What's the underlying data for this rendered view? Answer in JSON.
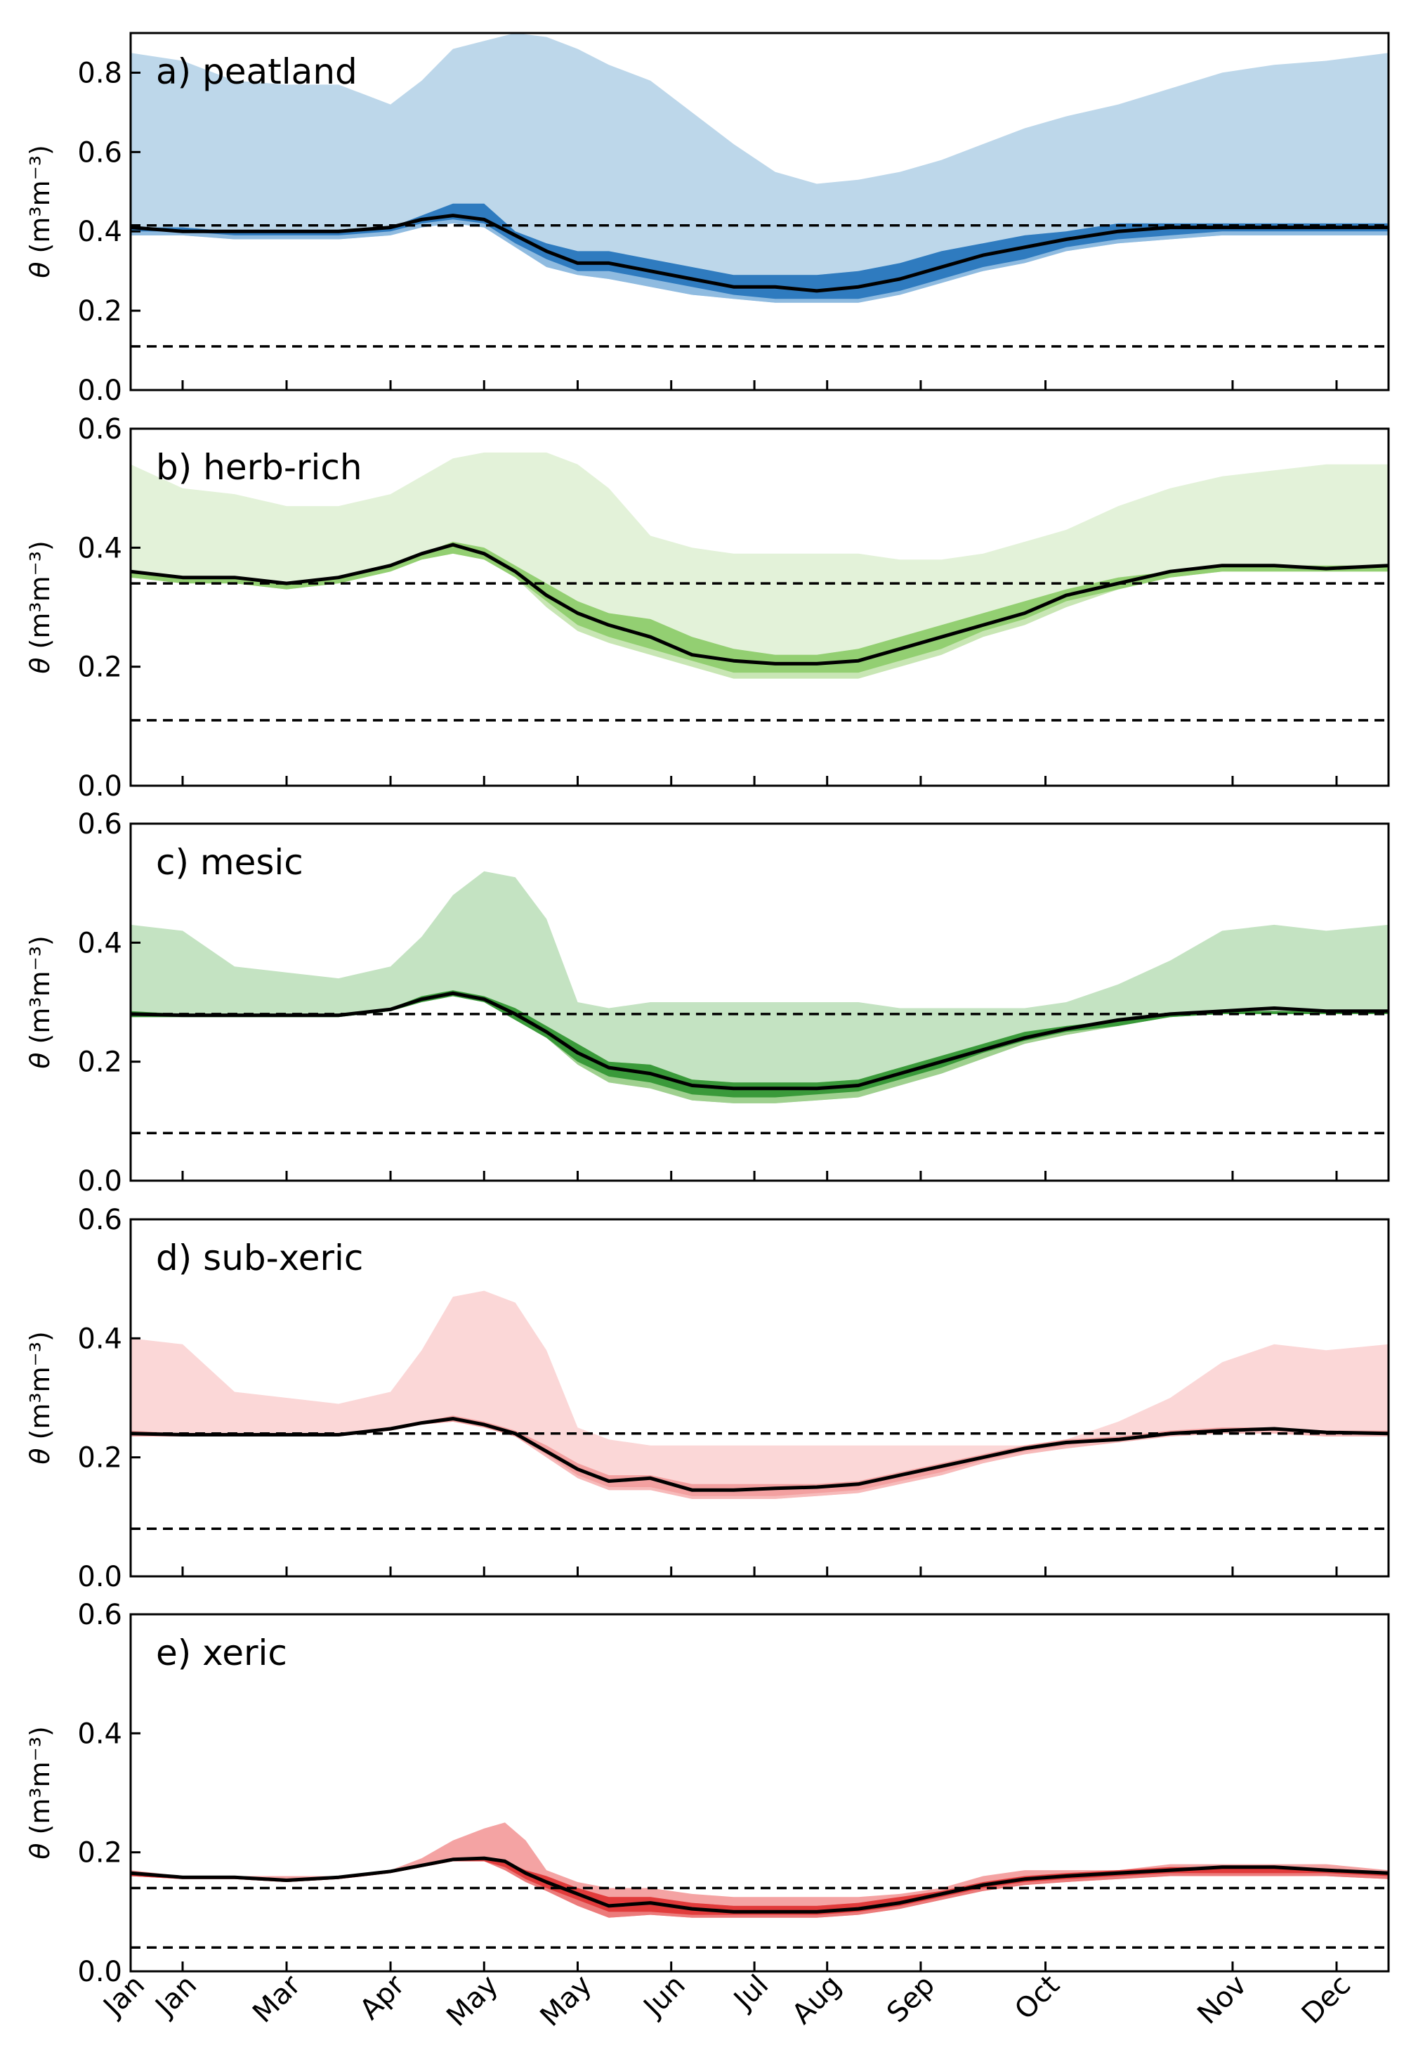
{
  "chart_data": {
    "type": "area",
    "ylabel_symbol": "θ",
    "ylabel_units": "(m³m⁻³)",
    "x_ticks": [
      "Jan",
      "Jan",
      "Mar",
      "Apr",
      "May",
      "May",
      "Jun",
      "Jul",
      "Aug",
      "Sep",
      "Oct",
      "Nov",
      "Dec"
    ],
    "x_tick_pos": [
      0,
      0.5,
      1.5,
      2.5,
      3.4,
      4.3,
      5.2,
      6.0,
      6.7,
      7.6,
      8.8,
      10.6,
      11.6
    ],
    "x_range": [
      0,
      12.1
    ],
    "panels": [
      {
        "label": "a) peatland",
        "ylim": [
          0,
          0.9
        ],
        "yticks": [
          "0.0",
          "0.2",
          "0.4",
          "0.6",
          "0.8"
        ],
        "ytick_vals": [
          0,
          0.2,
          0.4,
          0.6,
          0.8
        ],
        "hlines": [
          0.415,
          0.11
        ],
        "dash_styles": [
          "long",
          "long"
        ],
        "colors": {
          "outer": "#bdd7ea",
          "inner": "#2f7bbf",
          "mid": "#8fbbe0"
        },
        "x": [
          0,
          0.5,
          1.0,
          1.5,
          2.0,
          2.5,
          2.8,
          3.1,
          3.4,
          3.7,
          4.0,
          4.3,
          4.6,
          5.0,
          5.4,
          5.8,
          6.2,
          6.6,
          7.0,
          7.4,
          7.8,
          8.2,
          8.6,
          9.0,
          9.5,
          10.0,
          10.5,
          11.0,
          11.5,
          12.1
        ],
        "max": [
          0.85,
          0.83,
          0.78,
          0.77,
          0.77,
          0.72,
          0.78,
          0.86,
          0.88,
          0.9,
          0.89,
          0.86,
          0.82,
          0.78,
          0.7,
          0.62,
          0.55,
          0.52,
          0.53,
          0.55,
          0.58,
          0.62,
          0.66,
          0.69,
          0.72,
          0.76,
          0.8,
          0.82,
          0.83,
          0.85
        ],
        "mid_hi": [
          0.41,
          0.41,
          0.4,
          0.4,
          0.4,
          0.41,
          0.44,
          0.47,
          0.47,
          0.4,
          0.37,
          0.35,
          0.35,
          0.33,
          0.31,
          0.29,
          0.29,
          0.29,
          0.3,
          0.32,
          0.35,
          0.37,
          0.39,
          0.4,
          0.42,
          0.42,
          0.42,
          0.42,
          0.42,
          0.42
        ],
        "mid_lo": [
          0.4,
          0.4,
          0.39,
          0.39,
          0.39,
          0.4,
          0.42,
          0.43,
          0.42,
          0.37,
          0.33,
          0.3,
          0.3,
          0.28,
          0.26,
          0.24,
          0.23,
          0.23,
          0.23,
          0.25,
          0.28,
          0.31,
          0.33,
          0.36,
          0.38,
          0.39,
          0.4,
          0.4,
          0.4,
          0.4
        ],
        "min": [
          0.39,
          0.39,
          0.38,
          0.38,
          0.38,
          0.39,
          0.41,
          0.42,
          0.41,
          0.36,
          0.31,
          0.29,
          0.28,
          0.26,
          0.24,
          0.23,
          0.22,
          0.22,
          0.22,
          0.24,
          0.27,
          0.3,
          0.32,
          0.35,
          0.37,
          0.38,
          0.39,
          0.39,
          0.39,
          0.39
        ],
        "median": [
          0.41,
          0.4,
          0.4,
          0.4,
          0.4,
          0.41,
          0.43,
          0.44,
          0.43,
          0.39,
          0.35,
          0.32,
          0.32,
          0.3,
          0.28,
          0.26,
          0.26,
          0.25,
          0.26,
          0.28,
          0.31,
          0.34,
          0.36,
          0.38,
          0.4,
          0.41,
          0.41,
          0.41,
          0.41,
          0.41
        ]
      },
      {
        "label": "b) herb-rich",
        "ylim": [
          0,
          0.6
        ],
        "yticks": [
          "0.0",
          "0.2",
          "0.4",
          "0.6"
        ],
        "ytick_vals": [
          0,
          0.2,
          0.4,
          0.6
        ],
        "hlines": [
          0.34,
          0.11
        ],
        "dash_styles": [
          "long",
          "long"
        ],
        "colors": {
          "outer": "#e3f2d9",
          "inner": "#93cf72",
          "mid": "#c8e6b4"
        },
        "x": [
          0,
          0.5,
          1.0,
          1.5,
          2.0,
          2.5,
          2.8,
          3.1,
          3.4,
          3.7,
          4.0,
          4.3,
          4.6,
          5.0,
          5.4,
          5.8,
          6.2,
          6.6,
          7.0,
          7.4,
          7.8,
          8.2,
          8.6,
          9.0,
          9.5,
          10.0,
          10.5,
          11.0,
          11.5,
          12.1
        ],
        "max": [
          0.54,
          0.5,
          0.49,
          0.47,
          0.47,
          0.49,
          0.52,
          0.55,
          0.56,
          0.56,
          0.56,
          0.54,
          0.5,
          0.42,
          0.4,
          0.39,
          0.39,
          0.39,
          0.39,
          0.38,
          0.38,
          0.39,
          0.41,
          0.43,
          0.47,
          0.5,
          0.52,
          0.53,
          0.54,
          0.54
        ],
        "mid_hi": [
          0.36,
          0.35,
          0.35,
          0.34,
          0.35,
          0.37,
          0.39,
          0.41,
          0.4,
          0.37,
          0.34,
          0.31,
          0.29,
          0.28,
          0.25,
          0.23,
          0.22,
          0.22,
          0.23,
          0.25,
          0.27,
          0.29,
          0.31,
          0.33,
          0.35,
          0.36,
          0.37,
          0.37,
          0.37,
          0.37
        ],
        "mid_lo": [
          0.35,
          0.34,
          0.34,
          0.33,
          0.34,
          0.36,
          0.38,
          0.39,
          0.38,
          0.35,
          0.31,
          0.27,
          0.25,
          0.23,
          0.21,
          0.19,
          0.19,
          0.19,
          0.19,
          0.21,
          0.23,
          0.26,
          0.28,
          0.31,
          0.33,
          0.35,
          0.36,
          0.36,
          0.36,
          0.36
        ],
        "min": [
          0.35,
          0.34,
          0.34,
          0.33,
          0.34,
          0.36,
          0.38,
          0.39,
          0.38,
          0.35,
          0.3,
          0.26,
          0.24,
          0.22,
          0.2,
          0.18,
          0.18,
          0.18,
          0.18,
          0.2,
          0.22,
          0.25,
          0.27,
          0.3,
          0.33,
          0.35,
          0.36,
          0.36,
          0.36,
          0.36
        ],
        "median": [
          0.36,
          0.35,
          0.35,
          0.34,
          0.35,
          0.37,
          0.39,
          0.405,
          0.39,
          0.36,
          0.32,
          0.29,
          0.27,
          0.25,
          0.22,
          0.21,
          0.205,
          0.205,
          0.21,
          0.23,
          0.25,
          0.27,
          0.29,
          0.32,
          0.34,
          0.36,
          0.37,
          0.37,
          0.365,
          0.37
        ]
      },
      {
        "label": "c) mesic",
        "ylim": [
          0,
          0.6
        ],
        "yticks": [
          "0.0",
          "0.2",
          "0.4",
          "0.6"
        ],
        "ytick_vals": [
          0,
          0.2,
          0.4,
          0.6
        ],
        "hlines": [
          0.28,
          0.08
        ],
        "dash_styles": [
          "short",
          "long"
        ],
        "colors": {
          "outer": "#c4e3c2",
          "inner": "#3a9a3a",
          "mid": "#9fd08f"
        },
        "x": [
          0,
          0.5,
          1.0,
          1.5,
          2.0,
          2.5,
          2.8,
          3.1,
          3.4,
          3.7,
          4.0,
          4.3,
          4.6,
          5.0,
          5.4,
          5.8,
          6.2,
          6.6,
          7.0,
          7.4,
          7.8,
          8.2,
          8.6,
          9.0,
          9.5,
          10.0,
          10.5,
          11.0,
          11.5,
          12.1
        ],
        "max": [
          0.43,
          0.42,
          0.36,
          0.35,
          0.34,
          0.36,
          0.41,
          0.48,
          0.52,
          0.51,
          0.44,
          0.3,
          0.29,
          0.3,
          0.3,
          0.3,
          0.3,
          0.3,
          0.3,
          0.29,
          0.29,
          0.29,
          0.29,
          0.3,
          0.33,
          0.37,
          0.42,
          0.43,
          0.42,
          0.43
        ],
        "mid_hi": [
          0.285,
          0.28,
          0.28,
          0.28,
          0.28,
          0.29,
          0.31,
          0.32,
          0.31,
          0.29,
          0.26,
          0.23,
          0.2,
          0.195,
          0.17,
          0.165,
          0.165,
          0.165,
          0.17,
          0.19,
          0.21,
          0.23,
          0.25,
          0.26,
          0.27,
          0.28,
          0.285,
          0.285,
          0.285,
          0.285
        ],
        "mid_lo": [
          0.275,
          0.275,
          0.275,
          0.275,
          0.275,
          0.285,
          0.3,
          0.31,
          0.3,
          0.27,
          0.24,
          0.2,
          0.175,
          0.165,
          0.145,
          0.14,
          0.14,
          0.145,
          0.15,
          0.17,
          0.19,
          0.215,
          0.235,
          0.25,
          0.26,
          0.275,
          0.28,
          0.28,
          0.28,
          0.28
        ],
        "min": [
          0.275,
          0.275,
          0.275,
          0.275,
          0.275,
          0.285,
          0.3,
          0.31,
          0.3,
          0.27,
          0.24,
          0.195,
          0.165,
          0.155,
          0.135,
          0.13,
          0.13,
          0.135,
          0.14,
          0.16,
          0.18,
          0.205,
          0.23,
          0.245,
          0.26,
          0.275,
          0.28,
          0.28,
          0.28,
          0.28
        ],
        "median": [
          0.28,
          0.278,
          0.278,
          0.278,
          0.278,
          0.288,
          0.305,
          0.315,
          0.305,
          0.28,
          0.25,
          0.215,
          0.19,
          0.18,
          0.16,
          0.155,
          0.155,
          0.155,
          0.16,
          0.18,
          0.2,
          0.22,
          0.24,
          0.255,
          0.27,
          0.28,
          0.285,
          0.29,
          0.285,
          0.285
        ]
      },
      {
        "label": "d) sub-xeric",
        "ylim": [
          0,
          0.6
        ],
        "yticks": [
          "0.0",
          "0.2",
          "0.4",
          "0.6"
        ],
        "ytick_vals": [
          0,
          0.2,
          0.4,
          0.6
        ],
        "hlines": [
          0.24,
          0.08
        ],
        "dash_styles": [
          "long",
          "short"
        ],
        "colors": {
          "outer": "#fbd7d7",
          "inner": "#f3a0a0",
          "mid": "#f7baba"
        },
        "x": [
          0,
          0.5,
          1.0,
          1.5,
          2.0,
          2.5,
          2.8,
          3.1,
          3.4,
          3.7,
          4.0,
          4.3,
          4.6,
          5.0,
          5.4,
          5.8,
          6.2,
          6.6,
          7.0,
          7.4,
          7.8,
          8.2,
          8.6,
          9.0,
          9.5,
          10.0,
          10.5,
          11.0,
          11.5,
          12.1
        ],
        "max": [
          0.4,
          0.39,
          0.31,
          0.3,
          0.29,
          0.31,
          0.38,
          0.47,
          0.48,
          0.46,
          0.38,
          0.25,
          0.23,
          0.22,
          0.22,
          0.22,
          0.22,
          0.22,
          0.22,
          0.22,
          0.22,
          0.22,
          0.22,
          0.23,
          0.26,
          0.3,
          0.36,
          0.39,
          0.38,
          0.39
        ],
        "mid_hi": [
          0.245,
          0.24,
          0.24,
          0.24,
          0.24,
          0.25,
          0.26,
          0.27,
          0.26,
          0.245,
          0.22,
          0.19,
          0.17,
          0.17,
          0.155,
          0.155,
          0.155,
          0.155,
          0.16,
          0.175,
          0.19,
          0.205,
          0.22,
          0.23,
          0.235,
          0.245,
          0.25,
          0.25,
          0.245,
          0.245
        ],
        "mid_lo": [
          0.235,
          0.235,
          0.235,
          0.235,
          0.235,
          0.245,
          0.255,
          0.26,
          0.25,
          0.235,
          0.205,
          0.17,
          0.15,
          0.15,
          0.135,
          0.135,
          0.135,
          0.14,
          0.145,
          0.16,
          0.175,
          0.195,
          0.21,
          0.22,
          0.23,
          0.24,
          0.245,
          0.245,
          0.24,
          0.24
        ],
        "min": [
          0.235,
          0.235,
          0.235,
          0.235,
          0.235,
          0.245,
          0.255,
          0.26,
          0.25,
          0.235,
          0.2,
          0.165,
          0.145,
          0.145,
          0.13,
          0.13,
          0.13,
          0.135,
          0.14,
          0.155,
          0.17,
          0.19,
          0.205,
          0.215,
          0.225,
          0.235,
          0.24,
          0.24,
          0.235,
          0.235
        ],
        "median": [
          0.24,
          0.238,
          0.238,
          0.238,
          0.238,
          0.248,
          0.258,
          0.265,
          0.255,
          0.24,
          0.21,
          0.18,
          0.16,
          0.165,
          0.145,
          0.145,
          0.148,
          0.15,
          0.155,
          0.17,
          0.185,
          0.2,
          0.215,
          0.225,
          0.23,
          0.24,
          0.245,
          0.248,
          0.242,
          0.24
        ]
      },
      {
        "label": "e) xeric",
        "ylim": [
          0,
          0.6
        ],
        "yticks": [
          "0.0",
          "0.2",
          "0.4",
          "0.6"
        ],
        "ytick_vals": [
          0,
          0.2,
          0.4,
          0.6
        ],
        "hlines": [
          0.14,
          0.04
        ],
        "dash_styles": [
          "long",
          "long"
        ],
        "colors": {
          "outer": "#f4a3a3",
          "inner": "#e13b3b",
          "mid": "#ec7b7b"
        },
        "x": [
          0,
          0.5,
          1.0,
          1.5,
          2.0,
          2.5,
          2.8,
          3.1,
          3.4,
          3.6,
          3.8,
          4.0,
          4.3,
          4.6,
          5.0,
          5.4,
          5.8,
          6.2,
          6.6,
          7.0,
          7.4,
          7.8,
          8.2,
          8.6,
          9.0,
          9.5,
          10.0,
          10.5,
          11.0,
          11.5,
          12.1
        ],
        "max": [
          0.17,
          0.16,
          0.16,
          0.16,
          0.16,
          0.17,
          0.19,
          0.22,
          0.24,
          0.25,
          0.22,
          0.17,
          0.15,
          0.14,
          0.14,
          0.13,
          0.125,
          0.125,
          0.125,
          0.125,
          0.13,
          0.14,
          0.16,
          0.17,
          0.17,
          0.17,
          0.18,
          0.18,
          0.18,
          0.18,
          0.17
        ],
        "mid_hi": [
          0.165,
          0.16,
          0.16,
          0.155,
          0.16,
          0.17,
          0.18,
          0.19,
          0.19,
          0.185,
          0.17,
          0.16,
          0.14,
          0.125,
          0.125,
          0.115,
          0.11,
          0.11,
          0.11,
          0.115,
          0.125,
          0.135,
          0.15,
          0.16,
          0.165,
          0.17,
          0.175,
          0.175,
          0.175,
          0.17,
          0.165
        ],
        "mid_lo": [
          0.16,
          0.155,
          0.155,
          0.15,
          0.155,
          0.165,
          0.175,
          0.185,
          0.185,
          0.175,
          0.155,
          0.14,
          0.12,
          0.1,
          0.1,
          0.095,
          0.095,
          0.095,
          0.095,
          0.1,
          0.11,
          0.125,
          0.14,
          0.15,
          0.155,
          0.16,
          0.165,
          0.165,
          0.165,
          0.165,
          0.16
        ],
        "min": [
          0.16,
          0.155,
          0.155,
          0.15,
          0.155,
          0.165,
          0.175,
          0.185,
          0.185,
          0.17,
          0.15,
          0.135,
          0.11,
          0.09,
          0.095,
          0.09,
          0.09,
          0.09,
          0.09,
          0.095,
          0.105,
          0.12,
          0.135,
          0.145,
          0.15,
          0.155,
          0.16,
          0.16,
          0.16,
          0.16,
          0.155
        ],
        "median": [
          0.165,
          0.158,
          0.158,
          0.153,
          0.158,
          0.168,
          0.178,
          0.188,
          0.19,
          0.185,
          0.165,
          0.15,
          0.13,
          0.11,
          0.115,
          0.105,
          0.1,
          0.1,
          0.1,
          0.105,
          0.115,
          0.13,
          0.145,
          0.155,
          0.16,
          0.165,
          0.17,
          0.175,
          0.175,
          0.17,
          0.165
        ]
      }
    ]
  }
}
